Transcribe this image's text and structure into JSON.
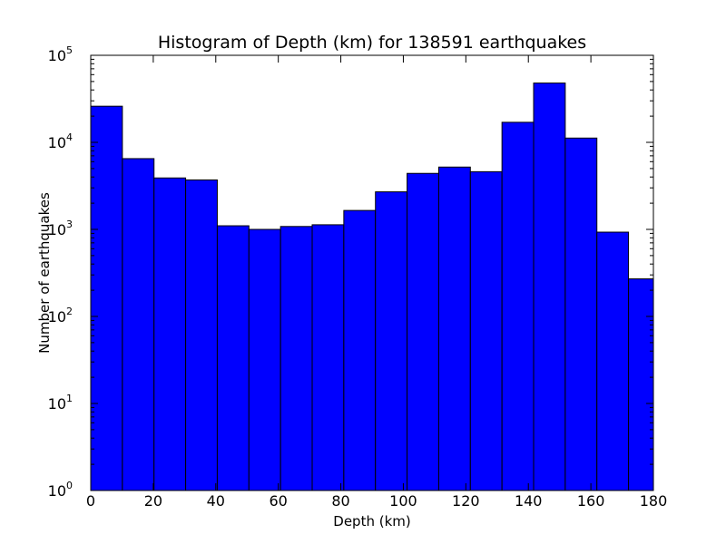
{
  "chart_data": {
    "type": "bar",
    "title": "Histogram of Depth (km) for 138591 earthquakes",
    "xlabel": "Depth (km)",
    "ylabel": "Number of earthquakes",
    "yscale": "log",
    "xlim": [
      0,
      180
    ],
    "ylim": [
      1,
      100000
    ],
    "bar_color": "#0000ff",
    "edge_color": "#000000",
    "grid": false,
    "xticks": [
      "0",
      "20",
      "40",
      "60",
      "80",
      "100",
      "120",
      "140",
      "160",
      "180"
    ],
    "yticks": [
      {
        "base": "10",
        "exp": "0"
      },
      {
        "base": "10",
        "exp": "1"
      },
      {
        "base": "10",
        "exp": "2"
      },
      {
        "base": "10",
        "exp": "3"
      },
      {
        "base": "10",
        "exp": "4"
      },
      {
        "base": "10",
        "exp": "5"
      }
    ],
    "bin_edges": [
      0,
      10.12,
      20.24,
      30.36,
      40.48,
      50.6,
      60.72,
      70.84,
      80.96,
      91.08,
      101.2,
      111.32,
      121.44,
      131.56,
      141.68,
      151.8,
      161.92,
      172.04,
      180
    ],
    "values": [
      26000,
      6500,
      3900,
      3700,
      1100,
      1000,
      1080,
      1130,
      1650,
      2700,
      4400,
      5200,
      4600,
      17000,
      48000,
      11200,
      930,
      270
    ]
  }
}
